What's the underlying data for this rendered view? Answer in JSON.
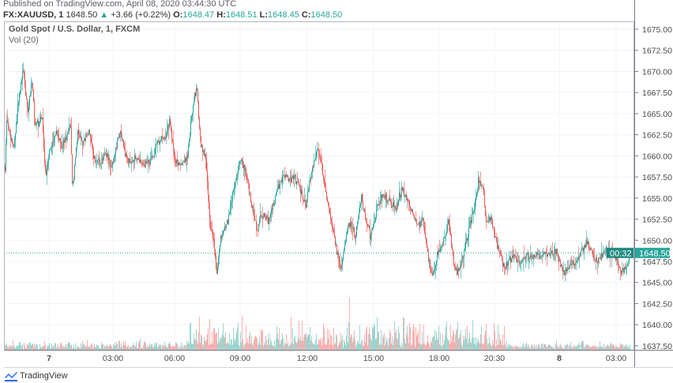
{
  "header": {
    "published": "Published on TradingView.com, April 08, 2020 03:44:30 UTC",
    "symbol": "FX:XAUUSD, 1",
    "last": "1648.50",
    "change": "+3.66 (+0.22%)",
    "o_label": "O:",
    "o": "1648.47",
    "h_label": "H:",
    "h": "1648.51",
    "l_label": "L:",
    "l": "1648.45",
    "c_label": "C:",
    "c": "1648.50"
  },
  "legend": {
    "title": "Gold Spot / U.S. Dollar, 1, FXCM",
    "volume": "Vol (20)"
  },
  "price_tag": {
    "value": "1648.50",
    "countdown": "00:32"
  },
  "footer": {
    "brand": "TradingView"
  },
  "colors": {
    "up": "#26a69a",
    "down": "#ef5350",
    "grid": "#f0f3fa",
    "axis": "#b2b5be"
  },
  "chart_data": {
    "type": "candlestick",
    "title": "Gold Spot / U.S. Dollar, 1, FXCM",
    "ylim": [
      1636.5,
      1675.9
    ],
    "y_ticks": [
      "1675.00",
      "1672.50",
      "1670.00",
      "1667.50",
      "1665.00",
      "1662.50",
      "1660.00",
      "1657.50",
      "1655.00",
      "1652.50",
      "1650.00",
      "1647.50",
      "1645.00",
      "1642.50",
      "1640.00",
      "1637.50"
    ],
    "x_ticks": [
      {
        "label": "7",
        "time": "2020-04-07 00:00",
        "bold": true
      },
      {
        "label": "03:00",
        "time": "2020-04-07 03:00"
      },
      {
        "label": "06:00",
        "time": "2020-04-07 06:00"
      },
      {
        "label": "09:00",
        "time": "2020-04-07 09:00"
      },
      {
        "label": "12:00",
        "time": "2020-04-07 12:00"
      },
      {
        "label": "15:00",
        "time": "2020-04-07 15:00"
      },
      {
        "label": "18:00",
        "time": "2020-04-07 18:00"
      },
      {
        "label": "20:30",
        "time": "2020-04-07 20:30"
      },
      {
        "label": "8",
        "time": "2020-04-08 00:00",
        "bold": true
      },
      {
        "label": "03:00",
        "time": "2020-04-08 03:00"
      }
    ],
    "last_price": 1648.5,
    "grid": true,
    "approx_close_path": [
      [
        "2020-04-06 21:55",
        1658.4
      ],
      [
        "2020-04-06 22:00",
        1664.4
      ],
      [
        "2020-04-06 22:15",
        1661.2
      ],
      [
        "2020-04-06 22:20",
        1660.7
      ],
      [
        "2020-04-06 22:30",
        1665.4
      ],
      [
        "2020-04-06 22:45",
        1670.5
      ],
      [
        "2020-04-06 23:00",
        1664.9
      ],
      [
        "2020-04-06 23:10",
        1669.1
      ],
      [
        "2020-04-06 23:20",
        1663.5
      ],
      [
        "2020-04-06 23:40",
        1664.4
      ],
      [
        "2020-04-06 23:50",
        1657.0
      ],
      [
        "2020-04-07 00:00",
        1660.7
      ],
      [
        "2020-04-07 00:20",
        1662.6
      ],
      [
        "2020-04-07 00:35",
        1661.2
      ],
      [
        "2020-04-07 01:00",
        1663.5
      ],
      [
        "2020-04-07 01:05",
        1656.0
      ],
      [
        "2020-04-07 01:20",
        1662.6
      ],
      [
        "2020-04-07 01:35",
        1661.6
      ],
      [
        "2020-04-07 01:50",
        1663.0
      ],
      [
        "2020-04-07 02:05",
        1659.8
      ],
      [
        "2020-04-07 02:20",
        1659.3
      ],
      [
        "2020-04-07 02:40",
        1660.2
      ],
      [
        "2020-04-07 02:55",
        1658.4
      ],
      [
        "2020-04-07 03:20",
        1663.0
      ],
      [
        "2020-04-07 03:40",
        1659.3
      ],
      [
        "2020-04-07 04:05",
        1659.8
      ],
      [
        "2020-04-07 04:25",
        1658.8
      ],
      [
        "2020-04-07 04:50",
        1659.3
      ],
      [
        "2020-04-07 05:10",
        1661.6
      ],
      [
        "2020-04-07 05:35",
        1662.6
      ],
      [
        "2020-04-07 05:45",
        1664.4
      ],
      [
        "2020-04-07 06:00",
        1659.3
      ],
      [
        "2020-04-07 06:20",
        1658.8
      ],
      [
        "2020-04-07 06:35",
        1660.2
      ],
      [
        "2020-04-07 06:50",
        1666.3
      ],
      [
        "2020-04-07 07:00",
        1668.2
      ],
      [
        "2020-04-07 07:10",
        1661.6
      ],
      [
        "2020-04-07 07:25",
        1659.8
      ],
      [
        "2020-04-07 07:35",
        1652.3
      ],
      [
        "2020-04-07 07:45",
        1650.4
      ],
      [
        "2020-04-07 07:55",
        1645.7
      ],
      [
        "2020-04-07 08:05",
        1650.4
      ],
      [
        "2020-04-07 08:25",
        1652.3
      ],
      [
        "2020-04-07 08:40",
        1656.0
      ],
      [
        "2020-04-07 09:00",
        1659.8
      ],
      [
        "2020-04-07 09:15",
        1657.9
      ],
      [
        "2020-04-07 09:30",
        1654.1
      ],
      [
        "2020-04-07 09:45",
        1651.3
      ],
      [
        "2020-04-07 09:55",
        1653.2
      ],
      [
        "2020-04-07 10:15",
        1652.3
      ],
      [
        "2020-04-07 10:40",
        1656.0
      ],
      [
        "2020-04-07 10:55",
        1657.9
      ],
      [
        "2020-04-07 11:10",
        1657.0
      ],
      [
        "2020-04-07 11:25",
        1657.4
      ],
      [
        "2020-04-07 11:40",
        1656.0
      ],
      [
        "2020-04-07 11:55",
        1654.1
      ],
      [
        "2020-04-07 12:10",
        1657.9
      ],
      [
        "2020-04-07 12:25",
        1660.7
      ],
      [
        "2020-04-07 12:35",
        1659.8
      ],
      [
        "2020-04-07 12:50",
        1655.1
      ],
      [
        "2020-04-07 13:05",
        1652.3
      ],
      [
        "2020-04-07 13:15",
        1649.5
      ],
      [
        "2020-04-07 13:30",
        1646.6
      ],
      [
        "2020-04-07 13:40",
        1649.5
      ],
      [
        "2020-04-07 13:55",
        1652.3
      ],
      [
        "2020-04-07 14:10",
        1650.4
      ],
      [
        "2020-04-07 14:25",
        1655.1
      ],
      [
        "2020-04-07 14:35",
        1653.2
      ],
      [
        "2020-04-07 14:50",
        1650.4
      ],
      [
        "2020-04-07 15:10",
        1654.1
      ],
      [
        "2020-04-07 15:25",
        1655.5
      ],
      [
        "2020-04-07 15:40",
        1654.6
      ],
      [
        "2020-04-07 16:00",
        1653.7
      ],
      [
        "2020-04-07 16:15",
        1656.0
      ],
      [
        "2020-04-07 16:30",
        1655.1
      ],
      [
        "2020-04-07 16:45",
        1653.2
      ],
      [
        "2020-04-07 17:00",
        1651.8
      ],
      [
        "2020-04-07 17:15",
        1652.3
      ],
      [
        "2020-04-07 17:30",
        1647.6
      ],
      [
        "2020-04-07 17:40",
        1645.7
      ],
      [
        "2020-04-07 17:55",
        1648.5
      ],
      [
        "2020-04-07 18:15",
        1650.4
      ],
      [
        "2020-04-07 18:25",
        1652.3
      ],
      [
        "2020-04-07 18:40",
        1646.6
      ],
      [
        "2020-04-07 18:50",
        1646.2
      ],
      [
        "2020-04-07 19:05",
        1648.5
      ],
      [
        "2020-04-07 19:20",
        1651.3
      ],
      [
        "2020-04-07 19:35",
        1654.1
      ],
      [
        "2020-04-07 19:45",
        1657.0
      ],
      [
        "2020-04-07 20:00",
        1655.5
      ],
      [
        "2020-04-07 20:05",
        1652.3
      ],
      [
        "2020-04-07 20:20",
        1652.7
      ],
      [
        "2020-04-07 20:30",
        1650.4
      ],
      [
        "2020-04-07 20:45",
        1648.5
      ],
      [
        "2020-04-07 21:00",
        1646.6
      ],
      [
        "2020-04-07 21:15",
        1647.6
      ],
      [
        "2020-04-07 21:30",
        1648.1
      ],
      [
        "2020-04-07 21:50",
        1647.6
      ],
      [
        "2020-04-07 22:15",
        1648.1
      ],
      [
        "2020-04-07 22:40",
        1648.1
      ],
      [
        "2020-04-07 23:05",
        1648.3
      ],
      [
        "2020-04-07 23:30",
        1648.5
      ],
      [
        "2020-04-07 23:50",
        1648.7
      ],
      [
        "2020-04-08 00:10",
        1646.2
      ],
      [
        "2020-04-08 00:20",
        1646.2
      ],
      [
        "2020-04-08 00:35",
        1647.1
      ],
      [
        "2020-04-08 00:55",
        1647.6
      ],
      [
        "2020-04-08 01:15",
        1649.0
      ],
      [
        "2020-04-08 01:25",
        1649.9
      ],
      [
        "2020-04-08 01:45",
        1648.1
      ],
      [
        "2020-04-08 02:05",
        1647.6
      ],
      [
        "2020-04-08 02:25",
        1649.0
      ],
      [
        "2020-04-08 02:40",
        1648.5
      ],
      [
        "2020-04-08 02:55",
        1648.1
      ],
      [
        "2020-04-08 03:15",
        1646.2
      ],
      [
        "2020-04-08 03:25",
        1646.6
      ],
      [
        "2020-04-08 03:35",
        1647.6
      ],
      [
        "2020-04-08 03:40",
        1648.5
      ]
    ]
  }
}
